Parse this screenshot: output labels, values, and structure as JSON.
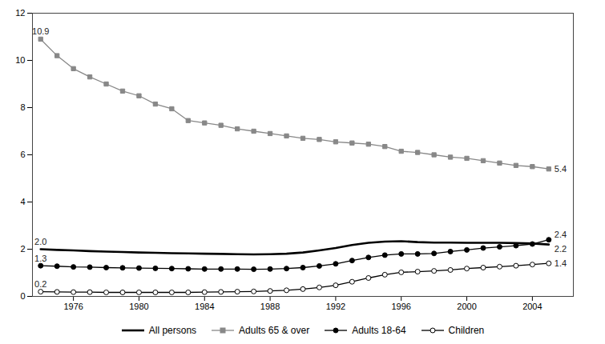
{
  "chart_data": {
    "type": "line",
    "x": [
      1974,
      1975,
      1976,
      1977,
      1978,
      1979,
      1980,
      1981,
      1982,
      1983,
      1984,
      1985,
      1986,
      1987,
      1988,
      1989,
      1990,
      1991,
      1992,
      1993,
      1994,
      1995,
      1996,
      1997,
      1998,
      1999,
      2000,
      2001,
      2002,
      2003,
      2004,
      2005
    ],
    "series": [
      {
        "name": "All persons",
        "color": "#000000",
        "marker": "none",
        "line_style": "solid",
        "values": [
          2.0,
          1.97,
          1.95,
          1.92,
          1.9,
          1.88,
          1.86,
          1.85,
          1.83,
          1.82,
          1.81,
          1.8,
          1.79,
          1.78,
          1.79,
          1.81,
          1.86,
          1.95,
          2.05,
          2.18,
          2.27,
          2.32,
          2.34,
          2.3,
          2.28,
          2.28,
          2.27,
          2.27,
          2.27,
          2.26,
          2.24,
          2.2
        ]
      },
      {
        "name": "Adults 65 & over",
        "color": "#888888",
        "marker": "square",
        "line_style": "solid",
        "values": [
          10.9,
          10.2,
          9.65,
          9.3,
          9.0,
          8.7,
          8.5,
          8.15,
          7.95,
          7.45,
          7.35,
          7.25,
          7.1,
          7.0,
          6.9,
          6.8,
          6.7,
          6.65,
          6.55,
          6.5,
          6.45,
          6.35,
          6.15,
          6.1,
          6.0,
          5.9,
          5.85,
          5.75,
          5.65,
          5.55,
          5.5,
          5.4
        ]
      },
      {
        "name": "Adults 18-64",
        "color": "#000000",
        "marker": "circle",
        "line_style": "solid",
        "values": [
          1.3,
          1.28,
          1.25,
          1.24,
          1.22,
          1.21,
          1.2,
          1.19,
          1.18,
          1.17,
          1.16,
          1.16,
          1.16,
          1.15,
          1.16,
          1.18,
          1.22,
          1.29,
          1.38,
          1.52,
          1.65,
          1.75,
          1.8,
          1.8,
          1.82,
          1.9,
          1.97,
          2.05,
          2.1,
          2.15,
          2.22,
          2.4
        ]
      },
      {
        "name": "Children",
        "color": "#000000",
        "marker": "circle-open",
        "line_style": "solid",
        "values": [
          0.2,
          0.19,
          0.18,
          0.18,
          0.17,
          0.17,
          0.17,
          0.17,
          0.17,
          0.17,
          0.18,
          0.19,
          0.2,
          0.21,
          0.23,
          0.26,
          0.31,
          0.38,
          0.47,
          0.62,
          0.78,
          0.92,
          1.02,
          1.05,
          1.08,
          1.12,
          1.18,
          1.22,
          1.26,
          1.3,
          1.35,
          1.4
        ]
      }
    ],
    "xlim": [
      1973.5,
      2006.5
    ],
    "ylim": [
      0,
      12
    ],
    "xticks": [
      1976,
      1980,
      1984,
      1988,
      1992,
      1996,
      2000,
      2004
    ],
    "yticks": [
      0,
      2,
      4,
      6,
      8,
      10,
      12
    ],
    "annotations": [
      {
        "text": "10.9",
        "x": 1974,
        "y": 10.9
      },
      {
        "text": "2.0",
        "x": 1974,
        "y": 2.0
      },
      {
        "text": "1.3",
        "x": 1974,
        "y": 1.3
      },
      {
        "text": "0.2",
        "x": 1974,
        "y": 0.2
      },
      {
        "text": "5.4",
        "x": 2005,
        "y": 5.4
      },
      {
        "text": "2.4",
        "x": 2005,
        "y": 2.4
      },
      {
        "text": "2.2",
        "x": 2005,
        "y": 2.2
      },
      {
        "text": "1.4",
        "x": 2005,
        "y": 1.4
      }
    ],
    "grid": false,
    "legend": "bottom"
  }
}
